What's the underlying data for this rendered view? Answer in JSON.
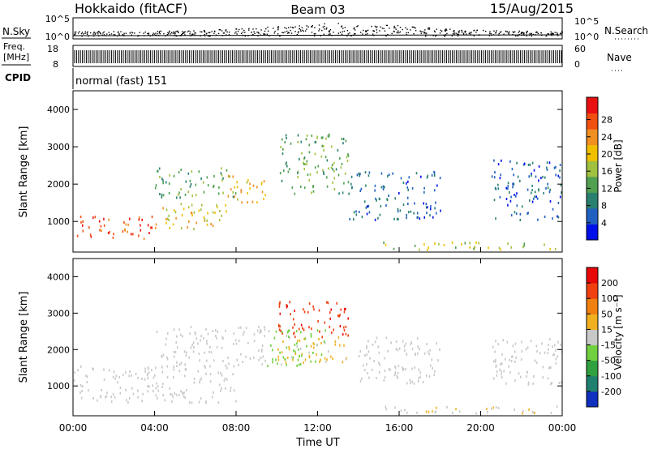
{
  "header": {
    "station": "Hokkaido (fitACF)",
    "beam": "Beam 03",
    "date": "15/Aug/2015"
  },
  "side_labels": {
    "nsky": "N.Sky",
    "freq_line1": "Freq.",
    "freq_line2": "[MHz]",
    "cpid": "CPID",
    "nsearch": "N.Search",
    "nave": "Nave"
  },
  "cpid_text": "normal (fast) 151",
  "noise_panel": {
    "left_ticks": [
      "10^5",
      "10^0"
    ],
    "right_ticks": [
      "10^5",
      "10^0"
    ]
  },
  "freq_panel": {
    "left_ticks": [
      "18",
      "8"
    ],
    "right_ticks": [
      "60",
      "0"
    ]
  },
  "x_axis": {
    "label": "Time UT",
    "ticks": [
      "00:00",
      "04:00",
      "08:00",
      "12:00",
      "16:00",
      "20:00",
      "00:00"
    ]
  },
  "power_colorbar": {
    "label": "Power [dB]",
    "ticks": [
      "4",
      "8",
      "12",
      "16",
      "20",
      "24",
      "28"
    ],
    "colors": [
      "#0010e8",
      "#2060c0",
      "#2a8070",
      "#50a050",
      "#a0c040",
      "#f0c000",
      "#f09020",
      "#f05010",
      "#e81010"
    ]
  },
  "velocity_colorbar": {
    "label": "Velocity [m s⁻¹]",
    "ticks": [
      "200",
      "100",
      "50",
      "15",
      "-15",
      "-50",
      "-100",
      "-200"
    ],
    "colors": [
      "#1030c0",
      "#208070",
      "#30a040",
      "#70d040",
      "#c8c8c8",
      "#f0b020",
      "#f08010",
      "#f04010",
      "#e80808"
    ]
  },
  "chart_data": [
    {
      "type": "heatmap",
      "title": "Power",
      "xlabel": "",
      "ylabel": "Slant Range [km]",
      "x_range": [
        "00:00",
        "00:00"
      ],
      "ylim": [
        180,
        4500
      ],
      "y_ticks": [
        1000,
        2000,
        3000,
        4000
      ],
      "colorbar_label": "Power [dB]",
      "colorbar_range": [
        2,
        32
      ],
      "regions": [
        {
          "t_start": 0.0,
          "t_end": 4.0,
          "r_min": 500,
          "r_max": 1100,
          "value": 27
        },
        {
          "t_start": 4.0,
          "t_end": 7.5,
          "r_min": 750,
          "r_max": 1500,
          "value": 20
        },
        {
          "t_start": 4.0,
          "t_end": 8.0,
          "r_min": 1600,
          "r_max": 2400,
          "value": 14
        },
        {
          "t_start": 7.5,
          "t_end": 9.5,
          "r_min": 1400,
          "r_max": 2200,
          "value": 22
        },
        {
          "t_start": 10.0,
          "t_end": 13.5,
          "r_min": 1700,
          "r_max": 3300,
          "value": 14
        },
        {
          "t_start": 13.5,
          "t_end": 18.0,
          "r_min": 1000,
          "r_max": 2300,
          "value": 8
        },
        {
          "t_start": 20.5,
          "t_end": 24.0,
          "r_min": 1000,
          "r_max": 2600,
          "value": 8
        },
        {
          "t_start": 15.0,
          "t_end": 24.0,
          "r_min": 200,
          "r_max": 400,
          "value": 18
        }
      ]
    },
    {
      "type": "heatmap",
      "title": "Velocity",
      "xlabel": "Time UT",
      "ylabel": "Slant Range [km]",
      "x_range": [
        "00:00",
        "00:00"
      ],
      "ylim": [
        180,
        4500
      ],
      "y_ticks": [
        1000,
        2000,
        3000,
        4000
      ],
      "colorbar_label": "Velocity [m s⁻¹]",
      "colorbar_range": [
        -250,
        250
      ],
      "regions": [
        {
          "t_start": 0.0,
          "t_end": 8.0,
          "r_min": 500,
          "r_max": 1500,
          "value": 0
        },
        {
          "t_start": 4.0,
          "t_end": 9.5,
          "r_min": 1500,
          "r_max": 2600,
          "value": -5
        },
        {
          "t_start": 10.0,
          "t_end": 13.5,
          "r_min": 2300,
          "r_max": 3300,
          "value": 180
        },
        {
          "t_start": 10.0,
          "t_end": 13.5,
          "r_min": 1600,
          "r_max": 2300,
          "value": 40
        },
        {
          "t_start": 9.5,
          "t_end": 12.5,
          "r_min": 1500,
          "r_max": 2500,
          "value": -40
        },
        {
          "t_start": 14.0,
          "t_end": 18.0,
          "r_min": 1000,
          "r_max": 2300,
          "value": 5
        },
        {
          "t_start": 20.5,
          "t_end": 24.0,
          "r_min": 1000,
          "r_max": 2300,
          "value": -5
        },
        {
          "t_start": 15.0,
          "t_end": 24.0,
          "r_min": 200,
          "r_max": 400,
          "value": 20
        }
      ]
    }
  ]
}
